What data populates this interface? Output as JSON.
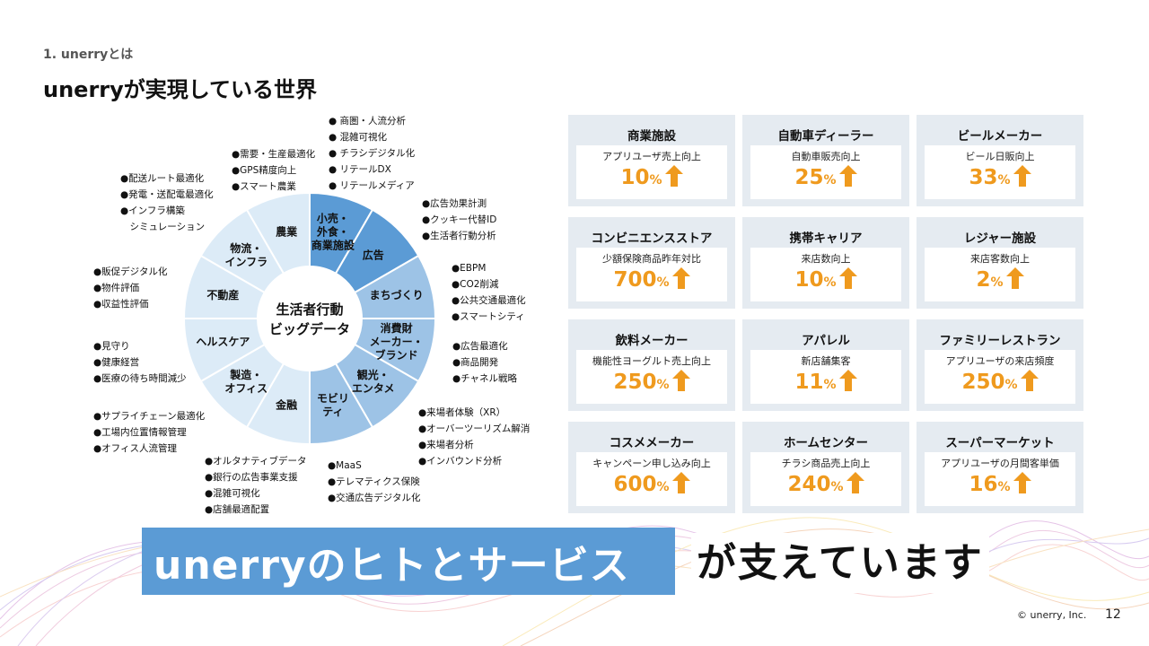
{
  "header": {
    "section": "1. unerryとは",
    "title": "unerryが実現している世界"
  },
  "wheel": {
    "center_line1": "生活者行動",
    "center_line2": "ビッグデータ",
    "segments": [
      {
        "lines": [
          "小売・",
          "外食・",
          "商業施設"
        ]
      },
      {
        "lines": [
          "広告"
        ]
      },
      {
        "lines": [
          "まちづくり"
        ]
      },
      {
        "lines": [
          "消費財",
          "メーカー・",
          "ブランド"
        ]
      },
      {
        "lines": [
          "観光・",
          "エンタメ"
        ]
      },
      {
        "lines": [
          "モビリ",
          "ティ"
        ]
      },
      {
        "lines": [
          "金融"
        ]
      },
      {
        "lines": [
          "製造・",
          "オフィス"
        ]
      },
      {
        "lines": [
          "ヘルスケア"
        ]
      },
      {
        "lines": [
          "不動産"
        ]
      },
      {
        "lines": [
          "物流・",
          "インフラ"
        ]
      },
      {
        "lines": [
          "農業"
        ]
      }
    ],
    "colors": {
      "highlight": "#5b9bd5",
      "mid": "#9dc3e6",
      "light": "#dcebf7",
      "border": "#ffffff"
    }
  },
  "notes": {
    "retail": [
      "● 商圏・人流分析",
      "● 混雑可視化",
      "● チラシデジタル化",
      "● リテールDX",
      "● リテールメディア"
    ],
    "agri": [
      "●需要・生産最適化",
      "●GPS精度向上",
      "●スマート農業"
    ],
    "logistics": [
      "●配送ルート最適化",
      "●発電・送配電最適化",
      "●インフラ構築",
      "　シミュレーション"
    ],
    "ad": [
      "●広告効果計測",
      "●クッキー代替ID",
      "●生活者行動分析"
    ],
    "town": [
      "●EBPM",
      "●CO2削減",
      "●公共交通最適化",
      "●スマートシティ"
    ],
    "realestate": [
      "●販促デジタル化",
      "●物件評価",
      "●収益性評価"
    ],
    "cpg": [
      "●広告最適化",
      "●商品開発",
      "●チャネル戦略"
    ],
    "health": [
      "●見守り",
      "●健康経営",
      "●医療の待ち時間減少"
    ],
    "tourism": [
      "●来場者体験（XR）",
      "●オーバーツーリズム解消",
      "●来場者分析",
      "●インバウンド分析"
    ],
    "manufacturing": [
      "●サプライチェーン最適化",
      "●工場内位置情報管理",
      "●オフィス人流管理"
    ],
    "finance": [
      "●オルタナティブデータ",
      "●銀行の広告事業支援",
      "●混雑可視化",
      "●店舗最適配置"
    ],
    "mobility": [
      "●MaaS",
      "●テレマティクス保険",
      "●交通広告デジタル化"
    ]
  },
  "cases": [
    {
      "title": "商業施設",
      "sub": "アプリユーザ売上向上",
      "value": "10",
      "unit": "%"
    },
    {
      "title": "自動車ディーラー",
      "sub": "自動車販売向上",
      "value": "25",
      "unit": "%"
    },
    {
      "title": "ビールメーカー",
      "sub": "ビール日販向上",
      "value": "33",
      "unit": "%"
    },
    {
      "title": "コンビニエンスストア",
      "sub": "少額保険商品昨年対比",
      "value": "700",
      "unit": "%"
    },
    {
      "title": "携帯キャリア",
      "sub": "来店数向上",
      "value": "10",
      "unit": "%"
    },
    {
      "title": "レジャー施設",
      "sub": "来店客数向上",
      "value": "2",
      "unit": "%"
    },
    {
      "title": "飲料メーカー",
      "sub": "機能性ヨーグルト売上向上",
      "value": "250",
      "unit": "%"
    },
    {
      "title": "アパレル",
      "sub": "新店舗集客",
      "value": "11",
      "unit": "%"
    },
    {
      "title": "ファミリーレストラン",
      "sub": "アプリユーザの来店頻度",
      "value": "250",
      "unit": "%"
    },
    {
      "title": "コスメメーカー",
      "sub": "キャンペーン申し込み向上",
      "value": "600",
      "unit": "%"
    },
    {
      "title": "ホームセンター",
      "sub": "チラシ商品売上向上",
      "value": "240",
      "unit": "%"
    },
    {
      "title": "スーパーマーケット",
      "sub": "アプリユーザの月間客単価",
      "value": "16",
      "unit": "%"
    }
  ],
  "banner": {
    "highlight": "unerryのヒトとサービス",
    "tail": "が支えています"
  },
  "footer": {
    "copyright": "© unerry, Inc.",
    "page_number": "12"
  },
  "colors": {
    "accent_blue": "#5b9bd5",
    "value_orange": "#ef9a1e",
    "card_bg": "#e5ebf1"
  }
}
